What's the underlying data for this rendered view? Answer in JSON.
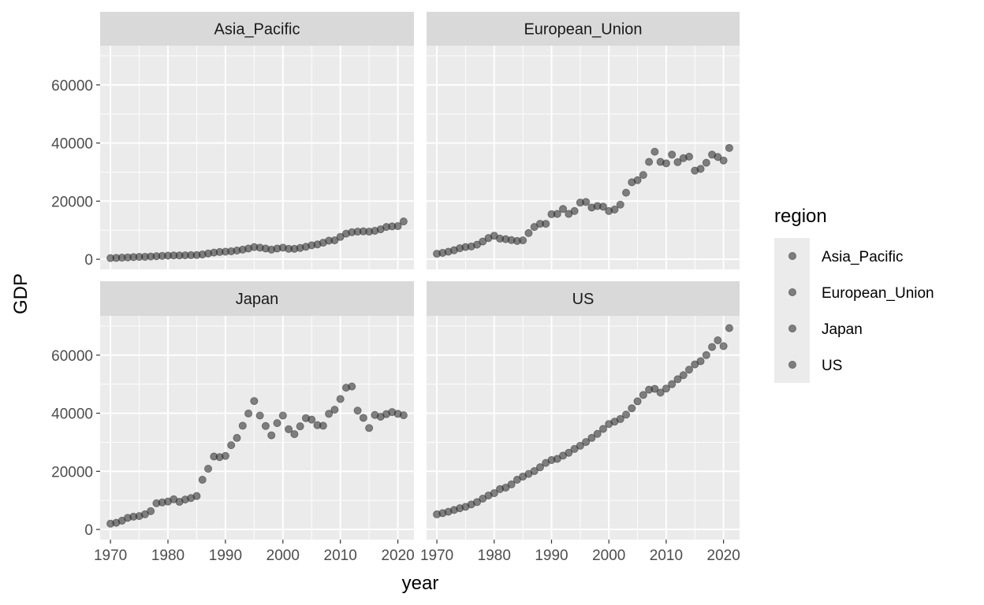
{
  "chart_data": {
    "type": "scatter",
    "facet_layout": "2x2",
    "xlabel": "year",
    "ylabel": "GDP",
    "xlim": [
      1968.2,
      2022.8
    ],
    "ylim": [
      -3500,
      73500
    ],
    "x_ticks": [
      1970,
      1980,
      1990,
      2000,
      2010,
      2020
    ],
    "y_ticks": [
      0,
      20000,
      40000,
      60000
    ],
    "grid": true,
    "point_color": "#333333",
    "point_alpha": 0.6,
    "panel_background": "#ebebeb",
    "strip_background": "#d9d9d9",
    "legend": {
      "title": "region",
      "position": "right",
      "entries": [
        "Asia_Pacific",
        "European_Union",
        "Japan",
        "US"
      ]
    },
    "panels": [
      {
        "name": "Asia_Pacific",
        "x": [
          1970,
          1971,
          1972,
          1973,
          1974,
          1975,
          1976,
          1977,
          1978,
          1979,
          1980,
          1981,
          1982,
          1983,
          1984,
          1985,
          1986,
          1987,
          1988,
          1989,
          1990,
          1991,
          1992,
          1993,
          1994,
          1995,
          1996,
          1997,
          1998,
          1999,
          2000,
          2001,
          2002,
          2003,
          2004,
          2005,
          2006,
          2007,
          2008,
          2009,
          2010,
          2011,
          2012,
          2013,
          2014,
          2015,
          2016,
          2017,
          2018,
          2019,
          2020,
          2021
        ],
        "y": [
          400,
          450,
          550,
          650,
          750,
          800,
          850,
          950,
          1050,
          1150,
          1250,
          1300,
          1300,
          1350,
          1400,
          1450,
          1650,
          2000,
          2300,
          2500,
          2600,
          2750,
          3000,
          3300,
          3700,
          4200,
          4000,
          3700,
          3300,
          3700,
          4000,
          3600,
          3600,
          3900,
          4300,
          4800,
          5100,
          5700,
          6400,
          6500,
          7700,
          8800,
          9300,
          9500,
          9600,
          9500,
          9800,
          10300,
          11100,
          11300,
          11400,
          13000
        ]
      },
      {
        "name": "European_Union",
        "x": [
          1970,
          1971,
          1972,
          1973,
          1974,
          1975,
          1976,
          1977,
          1978,
          1979,
          1980,
          1981,
          1982,
          1983,
          1984,
          1985,
          1986,
          1987,
          1988,
          1989,
          1990,
          1991,
          1992,
          1993,
          1994,
          1995,
          1996,
          1997,
          1998,
          1999,
          2000,
          2001,
          2002,
          2003,
          2004,
          2005,
          2006,
          2007,
          2008,
          2009,
          2010,
          2011,
          2012,
          2013,
          2014,
          2015,
          2016,
          2017,
          2018,
          2019,
          2020,
          2021
        ],
        "y": [
          1900,
          2200,
          2600,
          3100,
          3800,
          4200,
          4400,
          5000,
          6100,
          7300,
          8100,
          7100,
          6900,
          6600,
          6300,
          6500,
          9000,
          11100,
          12200,
          12200,
          15500,
          15600,
          17300,
          15600,
          16600,
          19500,
          19700,
          17800,
          18300,
          18100,
          16600,
          17100,
          18800,
          22900,
          26500,
          27200,
          29000,
          33500,
          37000,
          33500,
          33000,
          36000,
          33400,
          34800,
          35300,
          30500,
          31100,
          33200,
          36000,
          35200,
          34000,
          38300
        ]
      },
      {
        "name": "Japan",
        "x": [
          1970,
          1971,
          1972,
          1973,
          1974,
          1975,
          1976,
          1977,
          1978,
          1979,
          1980,
          1981,
          1982,
          1983,
          1984,
          1985,
          1986,
          1987,
          1988,
          1989,
          1990,
          1991,
          1992,
          1993,
          1994,
          1995,
          1996,
          1997,
          1998,
          1999,
          2000,
          2001,
          2002,
          2003,
          2004,
          2005,
          2006,
          2007,
          2008,
          2009,
          2010,
          2011,
          2012,
          2013,
          2014,
          2015,
          2016,
          2017,
          2018,
          2019,
          2020,
          2021
        ],
        "y": [
          2000,
          2300,
          3000,
          4000,
          4400,
          4600,
          5200,
          6300,
          9000,
          9300,
          9600,
          10400,
          9500,
          10300,
          10800,
          11500,
          17100,
          20900,
          25100,
          24900,
          25300,
          29000,
          31500,
          35700,
          39900,
          44200,
          39200,
          35600,
          32400,
          36600,
          39200,
          34500,
          32800,
          35500,
          38300,
          37800,
          35900,
          35700,
          39800,
          41200,
          44900,
          48800,
          49200,
          40900,
          38400,
          34900,
          39400,
          38800,
          39700,
          40400,
          39800,
          39300
        ]
      },
      {
        "name": "US",
        "x": [
          1970,
          1971,
          1972,
          1973,
          1974,
          1975,
          1976,
          1977,
          1978,
          1979,
          1980,
          1981,
          1982,
          1983,
          1984,
          1985,
          1986,
          1987,
          1988,
          1989,
          1990,
          1991,
          1992,
          1993,
          1994,
          1995,
          1996,
          1997,
          1998,
          1999,
          2000,
          2001,
          2002,
          2003,
          2004,
          2005,
          2006,
          2007,
          2008,
          2009,
          2010,
          2011,
          2012,
          2013,
          2014,
          2015,
          2016,
          2017,
          2018,
          2019,
          2020,
          2021
        ],
        "y": [
          5200,
          5600,
          6100,
          6700,
          7300,
          7800,
          8600,
          9400,
          10600,
          11700,
          12500,
          13900,
          14400,
          15500,
          17100,
          18200,
          19100,
          20100,
          21400,
          22900,
          23900,
          24300,
          25400,
          26400,
          27700,
          28800,
          30100,
          31500,
          32900,
          34600,
          36300,
          37100,
          38000,
          39500,
          41700,
          44100,
          46300,
          48100,
          48400,
          47100,
          48500,
          50000,
          51700,
          53100,
          55000,
          56800,
          57900,
          60000,
          62800,
          65100,
          63100,
          69300
        ]
      }
    ]
  }
}
